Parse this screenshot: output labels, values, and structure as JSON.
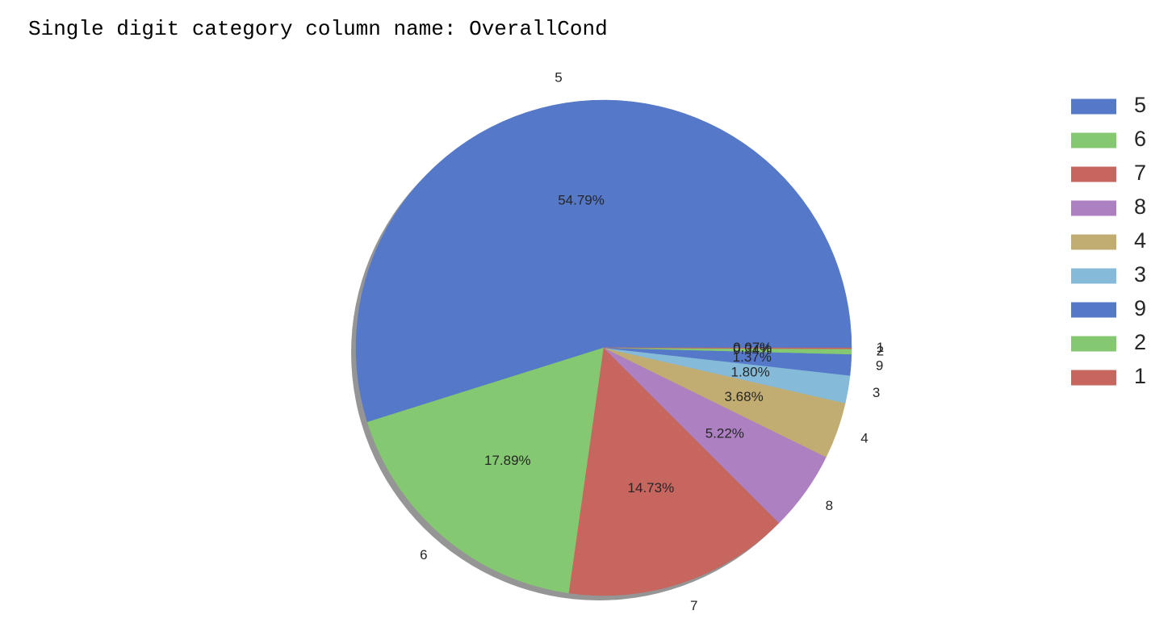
{
  "cell_output": {
    "text": "Single digit category column name: OverallCond"
  },
  "chart_data": {
    "type": "pie",
    "title": "",
    "categories": [
      "5",
      "6",
      "7",
      "8",
      "4",
      "3",
      "9",
      "2",
      "1"
    ],
    "values": [
      54.79,
      17.89,
      14.73,
      5.22,
      3.68,
      1.8,
      1.37,
      0.34,
      0.07
    ],
    "value_labels": [
      "54.79%",
      "17.89%",
      "14.73%",
      "5.22%",
      "3.68%",
      "1.80%",
      "1.37%",
      "0.34%",
      "0.07%"
    ],
    "colors": [
      "#5578c8",
      "#84c971",
      "#c7655f",
      "#ad80c2",
      "#c1ad71",
      "#85bbd9",
      "#5578c8",
      "#84c971",
      "#c7655f"
    ],
    "start_angle_deg": 0,
    "direction": "counterclockwise",
    "shadow": true,
    "legend": {
      "position": "upper-right-outside",
      "entries": [
        "5",
        "6",
        "7",
        "8",
        "4",
        "3",
        "9",
        "2",
        "1"
      ]
    }
  }
}
